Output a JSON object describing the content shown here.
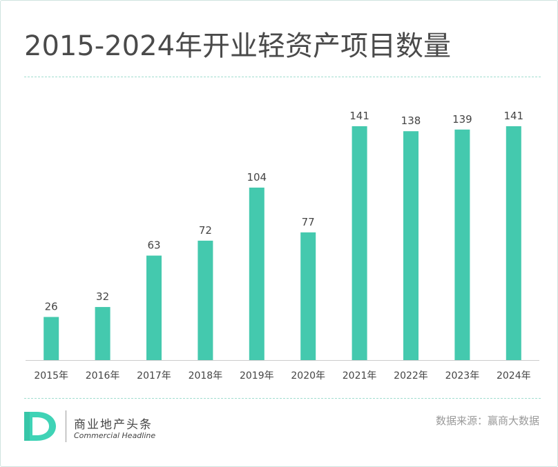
{
  "title": "2015-2024年开业轻资产项目数量",
  "colors": {
    "bar": "#44c9ae",
    "divider": "#9fdccf",
    "axis": "#cccccc",
    "logo": "#3fd3b6"
  },
  "chart_data": {
    "type": "bar",
    "title": "2015-2024年开业轻资产项目数量",
    "xlabel": "",
    "ylabel": "",
    "categories": [
      "2015年",
      "2016年",
      "2017年",
      "2018年",
      "2019年",
      "2020年",
      "2021年",
      "2022年",
      "2023年",
      "2024年"
    ],
    "values": [
      26,
      32,
      63,
      72,
      104,
      77,
      141,
      138,
      139,
      141
    ],
    "ylim": [
      0,
      141
    ],
    "grid": false,
    "legend": "none",
    "data_labels": true
  },
  "footer": {
    "logo_icon": "D-logo-icon",
    "brand_cn": "商业地产头条",
    "brand_en": "Commercial Headline",
    "source": "数据来源：赢商大数据"
  }
}
